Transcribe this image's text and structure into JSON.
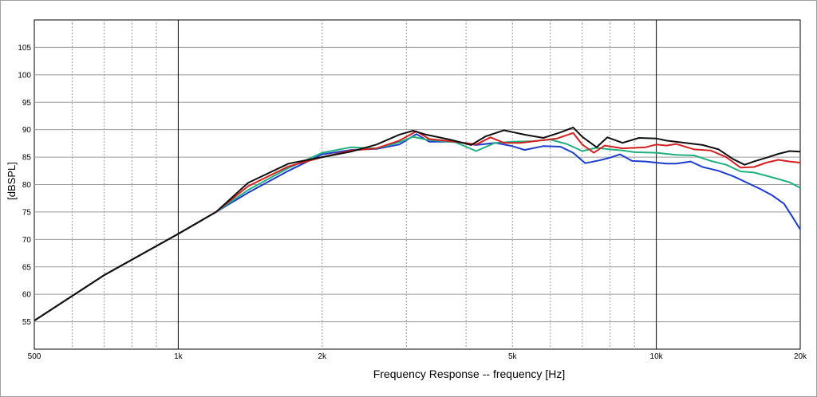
{
  "chart_data": {
    "type": "line",
    "title": "",
    "xlabel": "Frequency Response -- frequency [Hz]",
    "ylabel": "[dBSPL]",
    "x_scale": "log",
    "xlim": [
      500,
      20000
    ],
    "ylim": [
      50,
      110
    ],
    "grid": true,
    "x_ticks": [
      {
        "value": 500,
        "label": "500"
      },
      {
        "value": 1000,
        "label": "1k"
      },
      {
        "value": 2000,
        "label": "2k"
      },
      {
        "value": 5000,
        "label": "5k"
      },
      {
        "value": 10000,
        "label": "10k"
      },
      {
        "value": 20000,
        "label": "20k"
      }
    ],
    "y_ticks": [
      {
        "value": 55,
        "label": "55"
      },
      {
        "value": 60,
        "label": "60"
      },
      {
        "value": 65,
        "label": "65"
      },
      {
        "value": 70,
        "label": "70"
      },
      {
        "value": 75,
        "label": "75"
      },
      {
        "value": 80,
        "label": "80"
      },
      {
        "value": 85,
        "label": "85"
      },
      {
        "value": 90,
        "label": "90"
      },
      {
        "value": 95,
        "label": "95"
      },
      {
        "value": 100,
        "label": "100"
      },
      {
        "value": 105,
        "label": "105"
      }
    ],
    "series": [
      {
        "color": "#1c3ccc",
        "points": [
          [
            500,
            55.2
          ],
          [
            700,
            63.5
          ],
          [
            1000,
            71
          ],
          [
            1200,
            75
          ],
          [
            1400,
            78.5
          ],
          [
            1700,
            82.5
          ],
          [
            2000,
            85.5
          ],
          [
            2300,
            86.3
          ],
          [
            2600,
            86.5
          ],
          [
            2900,
            87.3
          ],
          [
            3150,
            89.2
          ],
          [
            3350,
            87.8
          ],
          [
            3800,
            87.8
          ],
          [
            4200,
            87.2
          ],
          [
            4600,
            87.6
          ],
          [
            5000,
            87
          ],
          [
            5300,
            86.3
          ],
          [
            5800,
            87
          ],
          [
            6300,
            86.9
          ],
          [
            6700,
            85.8
          ],
          [
            7100,
            83.9
          ],
          [
            7600,
            84.4
          ],
          [
            8000,
            84.9
          ],
          [
            8400,
            85.5
          ],
          [
            8900,
            84.3
          ],
          [
            9500,
            84.2
          ],
          [
            10000,
            84
          ],
          [
            10500,
            83.8
          ],
          [
            11000,
            83.8
          ],
          [
            11800,
            84.2
          ],
          [
            12500,
            83.2
          ],
          [
            13500,
            82.5
          ],
          [
            14500,
            81.5
          ],
          [
            15500,
            80.3
          ],
          [
            16500,
            79.2
          ],
          [
            17500,
            78
          ],
          [
            18500,
            76.5
          ],
          [
            19300,
            74
          ],
          [
            20000,
            71.8
          ]
        ]
      },
      {
        "color": "#20b080",
        "points": [
          [
            500,
            55.2
          ],
          [
            700,
            63.5
          ],
          [
            1000,
            71
          ],
          [
            1200,
            75
          ],
          [
            1400,
            79
          ],
          [
            1700,
            83
          ],
          [
            2000,
            85.8
          ],
          [
            2300,
            86.8
          ],
          [
            2600,
            86.6
          ],
          [
            2900,
            87.7
          ],
          [
            3100,
            88.7
          ],
          [
            3300,
            88.2
          ],
          [
            3800,
            87.7
          ],
          [
            4200,
            86.1
          ],
          [
            4600,
            87.6
          ],
          [
            5000,
            87.8
          ],
          [
            5500,
            87.9
          ],
          [
            6000,
            88.2
          ],
          [
            6500,
            87.4
          ],
          [
            7000,
            86.1
          ],
          [
            7500,
            86.7
          ],
          [
            8000,
            86.4
          ],
          [
            8500,
            86.2
          ],
          [
            9000,
            85.9
          ],
          [
            10000,
            85.8
          ],
          [
            11000,
            85.4
          ],
          [
            12000,
            85.3
          ],
          [
            13000,
            84.3
          ],
          [
            14000,
            83.6
          ],
          [
            15000,
            82.4
          ],
          [
            16000,
            82.2
          ],
          [
            17000,
            81.6
          ],
          [
            18000,
            81
          ],
          [
            19000,
            80.4
          ],
          [
            20000,
            79.4
          ]
        ]
      },
      {
        "color": "#d42020",
        "points": [
          [
            500,
            55.2
          ],
          [
            700,
            63.5
          ],
          [
            1000,
            71
          ],
          [
            1200,
            75
          ],
          [
            1400,
            79.7
          ],
          [
            1700,
            83.3
          ],
          [
            2000,
            85
          ],
          [
            2300,
            86.2
          ],
          [
            2600,
            86.6
          ],
          [
            2900,
            88
          ],
          [
            3150,
            89.7
          ],
          [
            3350,
            88.3
          ],
          [
            3800,
            87.8
          ],
          [
            4200,
            87.3
          ],
          [
            4500,
            88.6
          ],
          [
            4800,
            87.6
          ],
          [
            5200,
            87.6
          ],
          [
            5700,
            88
          ],
          [
            6200,
            88.4
          ],
          [
            6700,
            89.4
          ],
          [
            7000,
            87.3
          ],
          [
            7400,
            85.8
          ],
          [
            7800,
            87.1
          ],
          [
            8500,
            86.6
          ],
          [
            9500,
            86.8
          ],
          [
            10000,
            87.3
          ],
          [
            10500,
            87.1
          ],
          [
            11000,
            87.4
          ],
          [
            12000,
            86.4
          ],
          [
            13000,
            86.2
          ],
          [
            14000,
            85
          ],
          [
            15000,
            83.1
          ],
          [
            16000,
            83.2
          ],
          [
            17000,
            84
          ],
          [
            18000,
            84.5
          ],
          [
            19000,
            84.2
          ],
          [
            20000,
            84
          ]
        ]
      },
      {
        "color": "#101010",
        "points": [
          [
            500,
            55.2
          ],
          [
            700,
            63.5
          ],
          [
            1000,
            71
          ],
          [
            1200,
            75
          ],
          [
            1400,
            80.3
          ],
          [
            1700,
            83.8
          ],
          [
            2000,
            85
          ],
          [
            2300,
            86
          ],
          [
            2600,
            87.3
          ],
          [
            2900,
            89.1
          ],
          [
            3100,
            89.8
          ],
          [
            3300,
            89.1
          ],
          [
            3700,
            88.2
          ],
          [
            4100,
            87.2
          ],
          [
            4400,
            88.8
          ],
          [
            4800,
            89.9
          ],
          [
            5300,
            89.1
          ],
          [
            5800,
            88.5
          ],
          [
            6300,
            89.5
          ],
          [
            6700,
            90.4
          ],
          [
            7000,
            88.7
          ],
          [
            7500,
            86.8
          ],
          [
            7900,
            88.6
          ],
          [
            8500,
            87.6
          ],
          [
            9200,
            88.5
          ],
          [
            10000,
            88.4
          ],
          [
            10500,
            88
          ],
          [
            11500,
            87.6
          ],
          [
            12500,
            87.2
          ],
          [
            13500,
            86.4
          ],
          [
            14500,
            84.6
          ],
          [
            15300,
            83.6
          ],
          [
            16000,
            84.2
          ],
          [
            17000,
            84.9
          ],
          [
            18000,
            85.6
          ],
          [
            19000,
            86.1
          ],
          [
            20000,
            86
          ]
        ]
      }
    ]
  }
}
